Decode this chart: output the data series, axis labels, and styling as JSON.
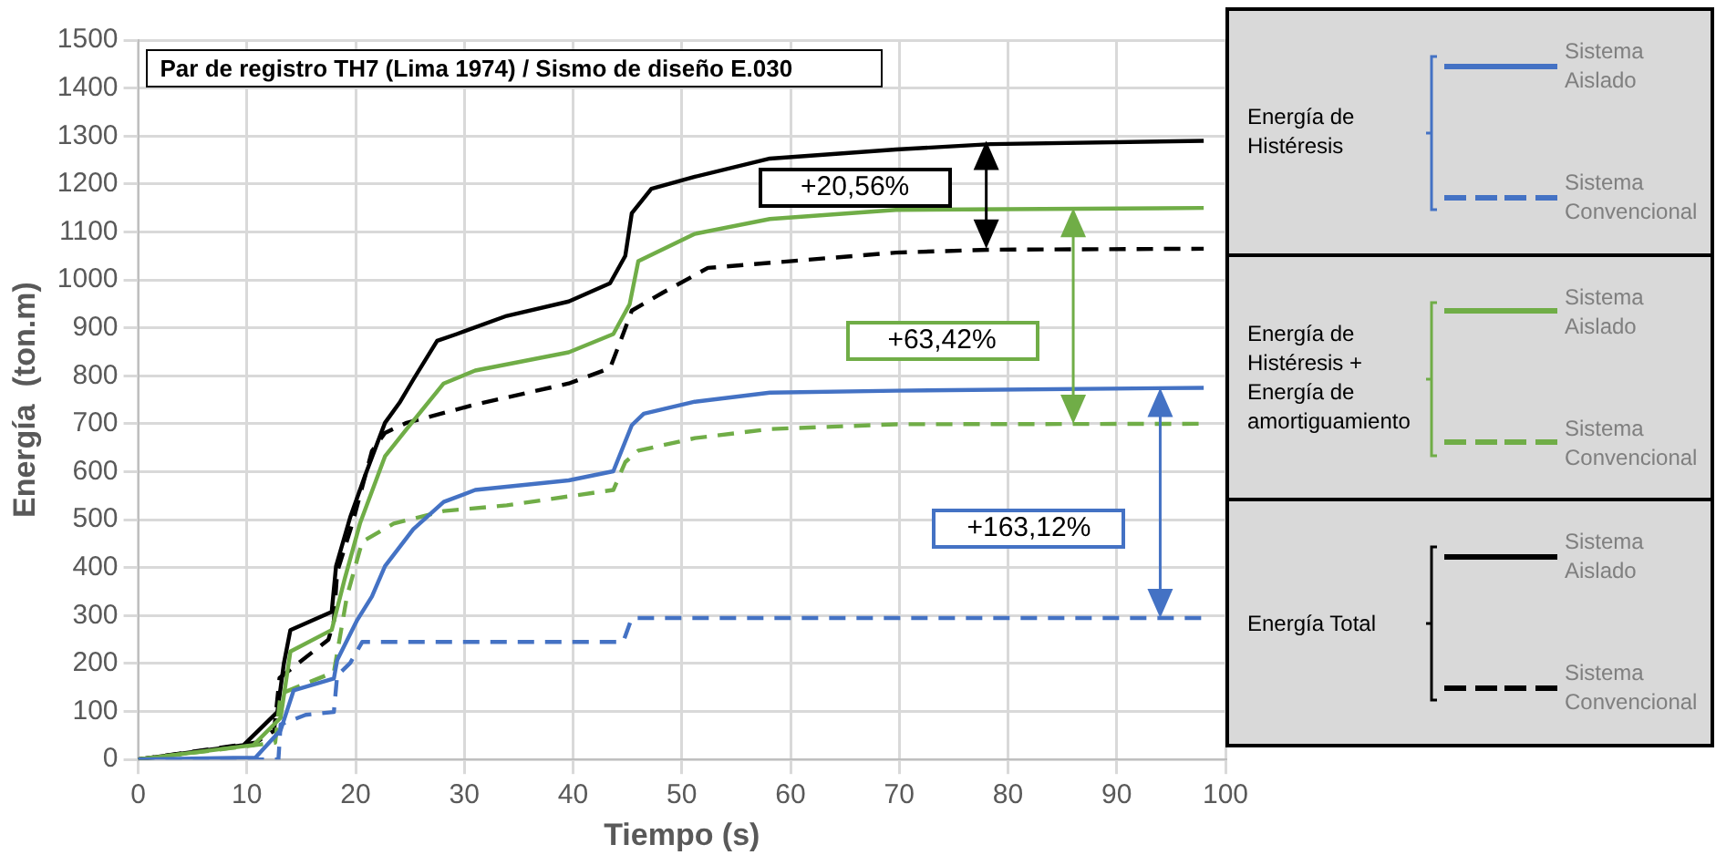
{
  "chart_data": {
    "type": "line",
    "title": "Par de registro TH7 (Lima 1974) / Sismo de diseño E.030",
    "xlabel": "Tiempo (s)",
    "ylabel": "Energía  (ton.m)",
    "xlim": [
      0,
      100
    ],
    "xticks": [
      0,
      10,
      20,
      30,
      40,
      50,
      60,
      70,
      80,
      90,
      100
    ],
    "ylim": [
      0,
      1500
    ],
    "yticks": [
      0,
      100,
      200,
      300,
      400,
      500,
      600,
      700,
      800,
      900,
      1000,
      1100,
      1200,
      1300,
      1400,
      1500
    ],
    "grid": true,
    "legend": "right",
    "marker": "none",
    "series": [
      {
        "name": "Sistema Aislado",
        "color": "#4472c4",
        "line_style": "solid",
        "x": [
          0,
          10.8,
          13.1,
          14.3,
          18,
          18.3,
          20.1,
          21.5,
          22.7,
          25.3,
          28.1,
          31,
          39.6,
          43.7,
          45.4,
          46.5,
          51.2,
          58.1,
          69.7,
          98
        ],
        "values": [
          0,
          4,
          61,
          144,
          169,
          207,
          289,
          340,
          403,
          480,
          537,
          562,
          582,
          601,
          697,
          721,
          746,
          765,
          769,
          775
        ]
      },
      {
        "name": "Sistema Convencional",
        "color": "#4472c4",
        "line_style": "dashed",
        "x": [
          0,
          12.9,
          13.1,
          15.4,
          18,
          18.3,
          19.5,
          20.6,
          44.6,
          45.4,
          98
        ],
        "values": [
          0,
          0,
          73,
          93,
          99,
          175,
          201,
          245,
          245,
          295,
          295
        ]
      },
      {
        "name": "Sistema Aislado",
        "color": "#70ad47",
        "line_style": "solid",
        "x": [
          0,
          10.6,
          13.1,
          14,
          17.8,
          19,
          20.4,
          22.7,
          24.7,
          28.1,
          31,
          39.6,
          43.7,
          45.2,
          46,
          51.2,
          58.1,
          69.7,
          98
        ],
        "values": [
          0,
          30,
          87,
          225,
          270,
          377,
          492,
          632,
          689,
          784,
          811,
          849,
          887,
          949,
          1039,
          1096,
          1127,
          1146,
          1150
        ]
      },
      {
        "name": "Sistema Convencional",
        "color": "#70ad47",
        "line_style": "dashed",
        "x": [
          0,
          12.6,
          13.1,
          18,
          19.2,
          20.6,
          23.5,
          28.1,
          33.9,
          43.7,
          44.8,
          46,
          51.2,
          58.1,
          69.7,
          98
        ],
        "values": [
          0,
          35,
          137,
          182,
          340,
          454,
          492,
          518,
          530,
          562,
          620,
          644,
          670,
          689,
          699,
          700
        ]
      },
      {
        "name": "Sistema Aislado",
        "color": "#000000",
        "line_style": "solid",
        "x": [
          0,
          9.7,
          12.8,
          13.4,
          14,
          17.8,
          18.2,
          19.5,
          20.9,
          22.7,
          24.1,
          25.3,
          27.5,
          29.3,
          33.9,
          39.6,
          43.4,
          44.8,
          45.4,
          47.2,
          51.2,
          58.1,
          69.7,
          78.4,
          98
        ],
        "values": [
          0,
          30,
          99,
          200,
          270,
          308,
          403,
          505,
          594,
          702,
          746,
          792,
          873,
          887,
          925,
          955,
          993,
          1050,
          1139,
          1190,
          1215,
          1253,
          1272,
          1283,
          1290
        ]
      },
      {
        "name": "Sistema Convencional",
        "color": "#000000",
        "line_style": "dashed",
        "x": [
          0,
          10.8,
          12.5,
          13,
          17.5,
          18,
          18.3,
          19.7,
          21.5,
          22.7,
          24.7,
          31,
          39.6,
          43.4,
          44.6,
          45.4,
          48.3,
          52.4,
          69.7,
          78.4,
          98
        ],
        "values": [
          0,
          35,
          60,
          170,
          250,
          289,
          391,
          492,
          643,
          681,
          702,
          740,
          784,
          816,
          887,
          936,
          974,
          1025,
          1057,
          1063,
          1065
        ]
      }
    ],
    "annotations": [
      "Energía de Histéresis",
      "Energía de Histéresis + Energía de amortiguamiento",
      "Energía Total",
      "+163,12%",
      "+63,42%",
      "+20,56%"
    ]
  }
}
